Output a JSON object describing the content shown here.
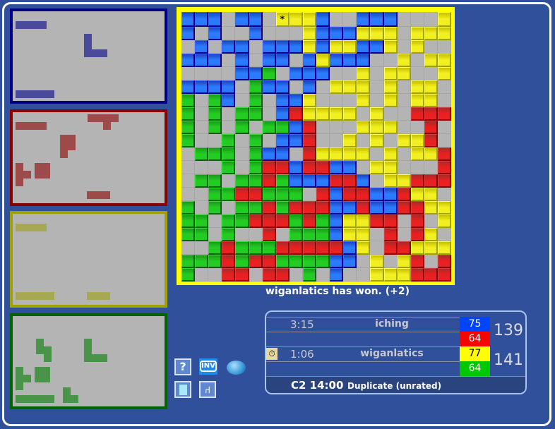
{
  "colors": {
    "blue": "#2b7cff",
    "red": "#e82222",
    "yellow": "#f0ee20",
    "green": "#22cc22",
    "background": "#31509c",
    "board_border": "#ffff00"
  },
  "trays": [
    {
      "color": "blue",
      "border": "#00008a",
      "piece_color": "#4a4a9c",
      "pieces": [
        "I4",
        "L5",
        "I5"
      ]
    },
    {
      "color": "red",
      "border": "#8a0000",
      "piece_color": "#9c4a4a",
      "pieces": [
        "T5",
        "I4",
        "P5",
        "T4",
        "O4",
        "I3"
      ]
    },
    {
      "color": "yellow",
      "border": "#a0a000",
      "piece_color": "#a8a852",
      "pieces": [
        "I4",
        "I5",
        "I3"
      ]
    },
    {
      "color": "green",
      "border": "#006400",
      "piece_color": "#4a944a",
      "pieces": [
        "Z4",
        "L5",
        "T4",
        "O4",
        "I5",
        "V3"
      ]
    }
  ],
  "board": {
    "last_move_marker": "*",
    "rows": [
      "BBB.BB.YYYB..BBB...Y",
      "B.B..B...YBBBYYY.YYY",
      ".B.BB.BBBYBYYBBY.Y..",
      "BBB.B.BB.BYBBB..Y.YY",
      "....BBG.BBB..Y.YY..Y",
      "BBBB.GBB.B.YYY.Y.YY.",
      "G.GB.G.BBY...Y.Y.YY.",
      "G.G.GG.BRYYYY.Y..RRR",
      "G.G.G.GGBR...YYY..R.",
      "G..G.G.BBR..Y.Y.YYR.",
      ".GGG.GBB.RYYYY.Y.YYR",
      "...G.GRRBRRBB.YY...R",
      ".GG.GGRGBBBRRB.YYRRR",
      "..GGRRGGG.RBRRBBRYY.",
      "G.G.GGRGRRRBBRBBRRYY",
      "GG.GGRRRGRGBYYRR.R.Y",
      "GG.G..R.GGGBYY.R.RY.",
      "..GRGGGRRRRRBY.RRYYY",
      "GGGRGRRGGGGBB.Y.YR.R",
      "G..RR.RR.G.B..YYYRRR"
    ]
  },
  "status": "wiganlatics has won. (+2)",
  "scoreboard": {
    "players": [
      {
        "time": "3:15",
        "name": "iching",
        "scores": [
          {
            "color": "blue",
            "value": "75"
          },
          {
            "color": "red",
            "value": "64"
          }
        ],
        "total": "139",
        "clock_active": false
      },
      {
        "time": "1:06",
        "name": "wiganlatics",
        "scores": [
          {
            "color": "yellow",
            "value": "77"
          },
          {
            "color": "green",
            "value": "64"
          }
        ],
        "total": "141",
        "clock_active": true
      }
    ],
    "game_type": "C2 14:00",
    "mode": "Duplicate (unrated)"
  },
  "toolbar": {
    "help": "?",
    "invite": "INV",
    "chat": "chat-bubble-icon",
    "pieces": "piece-icon",
    "leave": "chair-icon"
  }
}
